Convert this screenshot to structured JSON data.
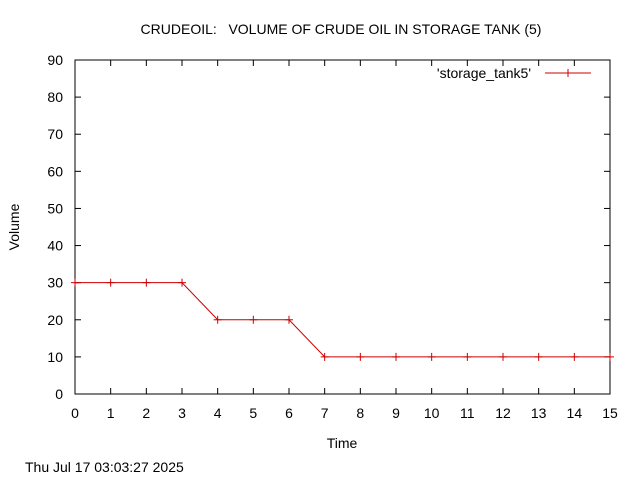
{
  "chart_data": {
    "type": "line",
    "title": "CRUDEOIL:   VOLUME OF CRUDE OIL IN STORAGE TANK (5)",
    "xlabel": "Time",
    "ylabel": "Volume",
    "xlim": [
      0,
      15
    ],
    "ylim": [
      0,
      90
    ],
    "xticks": [
      0,
      1,
      2,
      3,
      4,
      5,
      6,
      7,
      8,
      9,
      10,
      11,
      12,
      13,
      14,
      15
    ],
    "yticks": [
      0,
      10,
      20,
      30,
      40,
      50,
      60,
      70,
      80,
      90
    ],
    "grid": false,
    "legend_position": "top-right",
    "series": [
      {
        "name": "'storage_tank5'",
        "color": "#cc0000",
        "marker": "plus",
        "x": [
          0,
          1,
          2,
          3,
          4,
          5,
          6,
          7,
          8,
          9,
          10,
          11,
          12,
          13,
          14,
          15
        ],
        "y": [
          30,
          30,
          30,
          30,
          20,
          20,
          20,
          10,
          10,
          10,
          10,
          10,
          10,
          10,
          10,
          10
        ]
      }
    ]
  },
  "footer": {
    "timestamp": "Thu Jul 17 03:03:27 2025"
  }
}
